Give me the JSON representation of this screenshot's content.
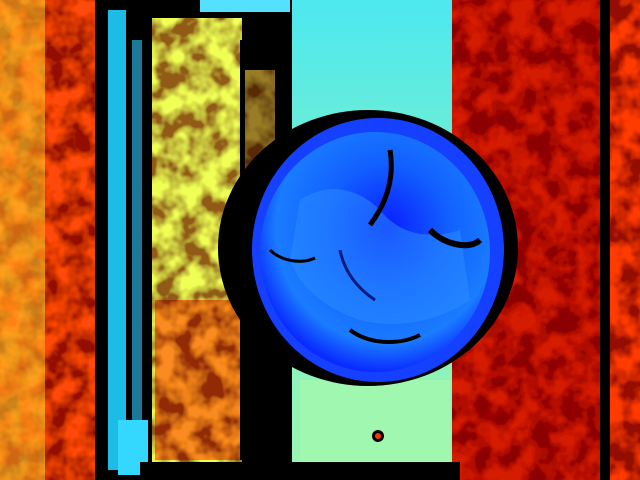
{
  "image": {
    "kind": "depth-map-false-color",
    "colormap": "jet",
    "palette": {
      "invalid": "#000000",
      "near": "#0000ff",
      "near_mid": "#1e90ff",
      "mid": "#00e5ff",
      "mid_far": "#ffff33",
      "far": "#ff3300",
      "farthest": "#800000"
    }
  }
}
